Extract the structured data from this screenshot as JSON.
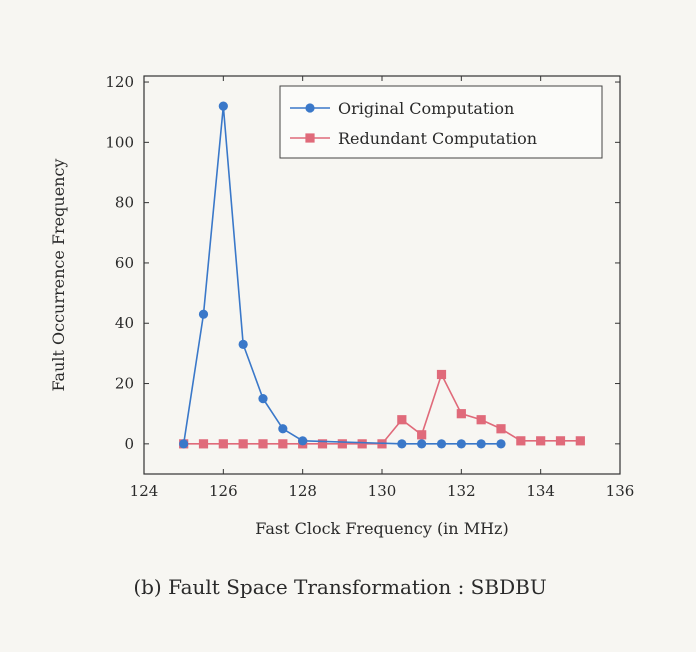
{
  "chart_data": {
    "type": "line",
    "xlabel": "Fast Clock Frequency (in MHz)",
    "ylabel": "Fault Occurrence Frequency",
    "xlim": [
      124,
      136
    ],
    "ylim": [
      -10,
      122
    ],
    "xticks": [
      124,
      126,
      128,
      130,
      132,
      134,
      136
    ],
    "yticks": [
      0,
      20,
      40,
      60,
      80,
      100,
      120
    ],
    "grid": false,
    "legend_position": "top-right",
    "caption": "(b) Fault Space Transformation : SBDBU",
    "series": [
      {
        "name": "Original Computation",
        "color": "#3a78c9",
        "marker": "circle",
        "x": [
          125,
          125.5,
          126,
          126.5,
          127,
          127.5,
          128,
          130.5,
          131,
          131.5,
          132,
          132.5,
          133
        ],
        "y": [
          0,
          43,
          112,
          33,
          15,
          5,
          1,
          0,
          0,
          0,
          0,
          0,
          0
        ]
      },
      {
        "name": "Redundant Computation",
        "color": "#e06a7a",
        "marker": "square",
        "x": [
          125,
          125.5,
          126,
          126.5,
          127,
          127.5,
          128,
          128.5,
          129,
          129.5,
          130,
          130.5,
          131,
          131.5,
          132,
          132.5,
          133,
          133.5,
          134,
          134.5,
          135
        ],
        "y": [
          0,
          0,
          0,
          0,
          0,
          0,
          0,
          0,
          0,
          0,
          0,
          8,
          3,
          23,
          10,
          8,
          5,
          1,
          1,
          1,
          1
        ]
      }
    ]
  }
}
